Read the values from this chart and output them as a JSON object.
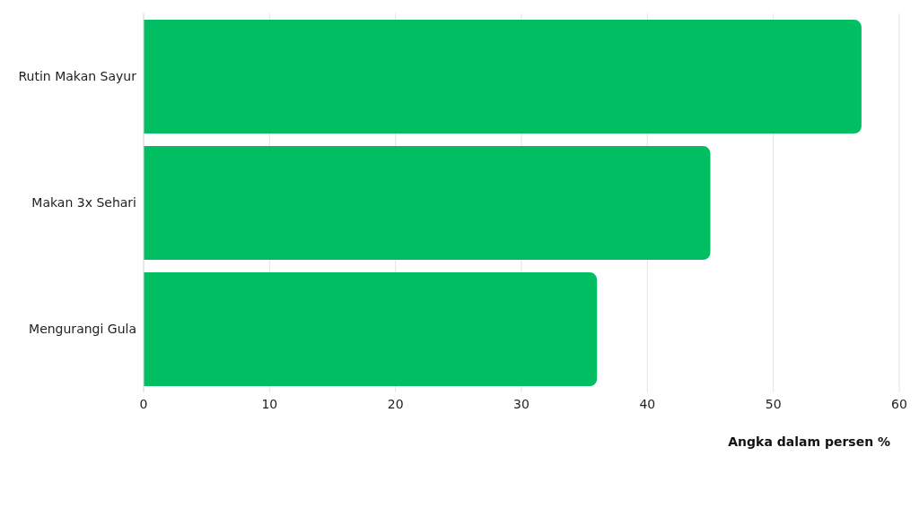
{
  "chart_data": {
    "type": "bar",
    "orientation": "horizontal",
    "categories": [
      "Rutin Makan Sayur",
      "Makan 3x Sehari",
      "Mengurangi Gula"
    ],
    "values": [
      57,
      45,
      36
    ],
    "color": "#02be63",
    "xlim": [
      0,
      60
    ],
    "xticks": [
      0,
      10,
      20,
      30,
      40,
      50,
      60
    ],
    "grid": "x",
    "xlabel": "Angka dalam persen %"
  }
}
